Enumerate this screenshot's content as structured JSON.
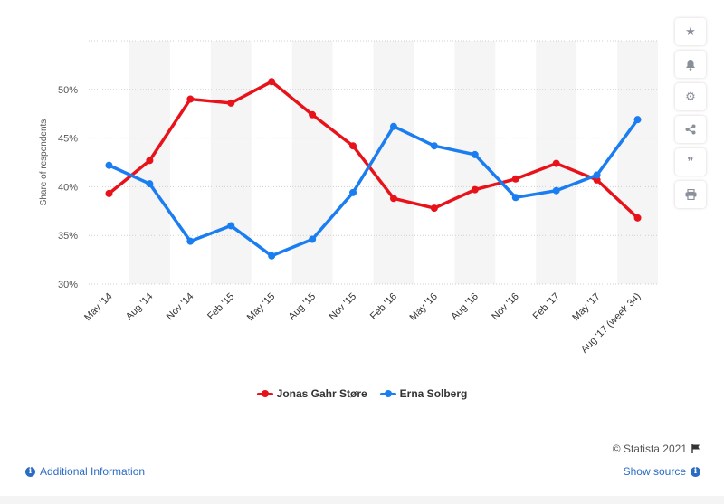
{
  "chart_data": {
    "type": "line",
    "title": "",
    "xlabel": "",
    "ylabel": "Share of respondents",
    "categories": [
      "May '14",
      "Aug '14",
      "Nov '14",
      "Feb '15",
      "May '15",
      "Aug '15",
      "Nov '15",
      "Feb '16",
      "May '16",
      "Aug '16",
      "Nov '16",
      "Feb '17",
      "May '17",
      "Aug '17 (week 34)"
    ],
    "ylim": [
      30,
      55
    ],
    "yticks": [
      30,
      35,
      40,
      45,
      50
    ],
    "ytick_labels": [
      "30%",
      "35%",
      "40%",
      "45%",
      "50%"
    ],
    "grid": true,
    "legend_position": "bottom-center",
    "series": [
      {
        "name": "Jonas Gahr Støre",
        "color": "#e8121a",
        "values": [
          39.3,
          42.7,
          49.0,
          48.6,
          50.8,
          47.4,
          44.2,
          38.8,
          37.8,
          39.7,
          40.8,
          42.4,
          40.7,
          36.8
        ]
      },
      {
        "name": "Erna Solberg",
        "color": "#1a7df0",
        "values": [
          42.2,
          40.3,
          34.4,
          36.0,
          32.9,
          34.6,
          39.4,
          46.2,
          44.2,
          43.3,
          38.9,
          39.6,
          41.2,
          46.9
        ]
      }
    ]
  },
  "toolbar": {
    "star_icon": "★",
    "bell_icon": "🔔",
    "gear_icon": "⚙",
    "share_icon": "<",
    "quote_icon": "❞",
    "print_icon": "⎙"
  },
  "footer": {
    "copyright": "© Statista 2021",
    "additional_info": "Additional Information",
    "show_source": "Show source"
  }
}
